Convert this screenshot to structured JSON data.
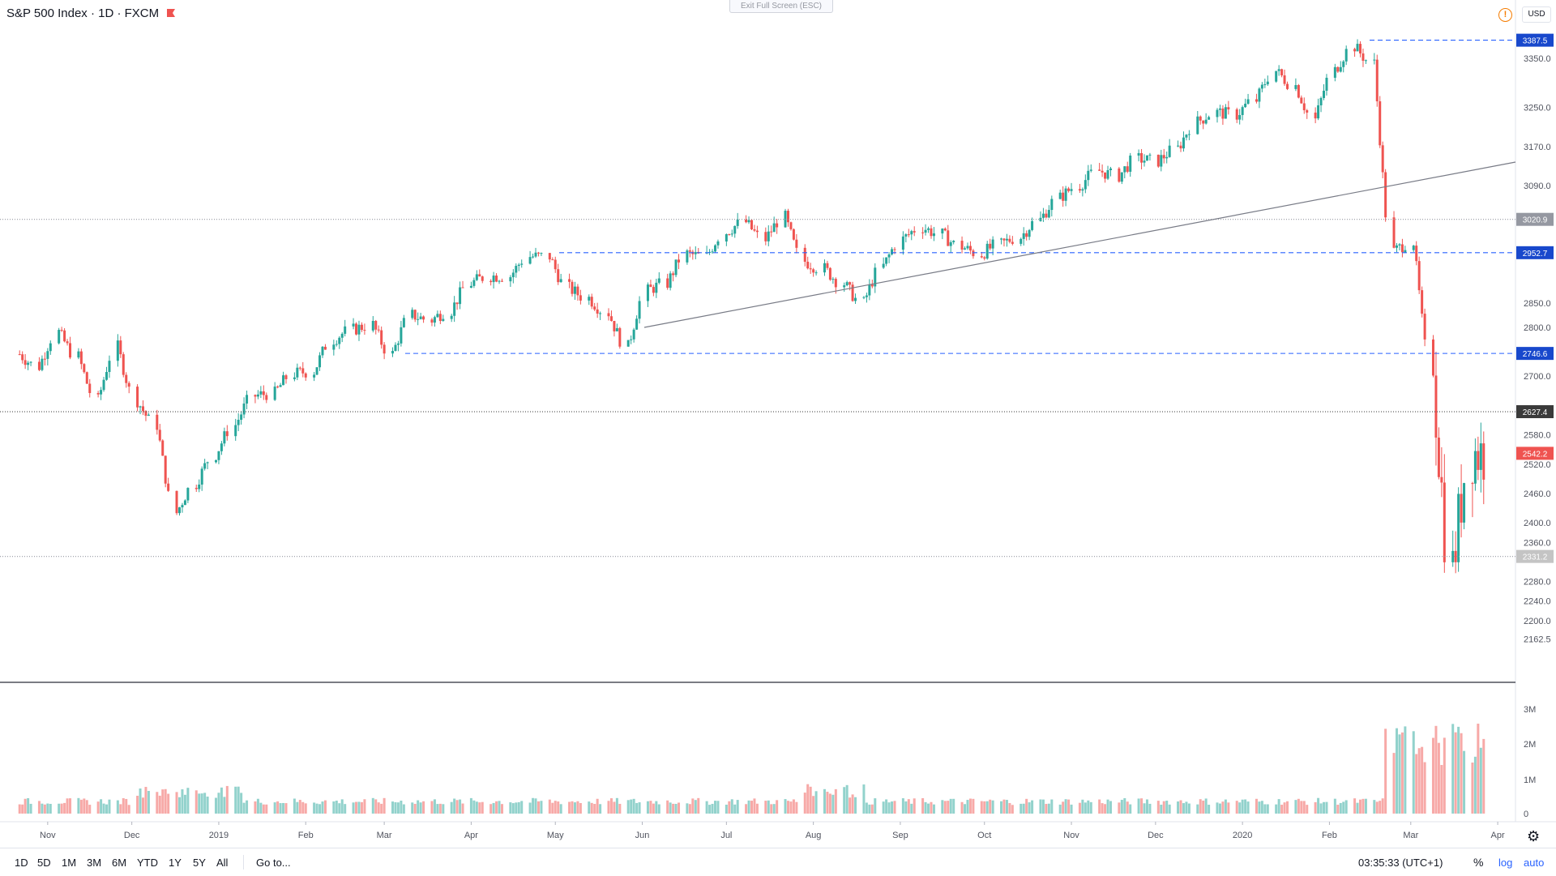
{
  "header": {
    "title": "S&P 500 Index · 1D · FXCM",
    "exit_fullscreen": "Exit Full Screen (ESC)",
    "currency": "USD",
    "warning_icon": "alert-circle-icon"
  },
  "bottom_bar": {
    "ranges": [
      "1D",
      "5D",
      "1M",
      "3M",
      "6M",
      "YTD",
      "1Y",
      "5Y",
      "All"
    ],
    "goto": "Go to...",
    "clock": "03:35:33 (UTC+1)",
    "percent": "%",
    "log": "log",
    "auto": "auto",
    "settings_icon": "gear-icon"
  },
  "colors": {
    "up": "#26a69a",
    "down": "#ef5350",
    "blue_line": "#2962ff",
    "trend": "#787b86"
  },
  "chart_data": {
    "type": "candlestick",
    "symbol": "S&P 500 Index",
    "interval": "1D",
    "source": "FXCM",
    "x_tick_labels": [
      "Nov",
      "Dec",
      "2019",
      "Feb",
      "Mar",
      "Apr",
      "May",
      "Jun",
      "Jul",
      "Aug",
      "Sep",
      "Oct",
      "Nov",
      "Dec",
      "2020",
      "Feb",
      "Mar",
      "Apr"
    ],
    "y_tick_labels": [
      3350.0,
      3250.0,
      3170.0,
      3090.0,
      2850.0,
      2800.0,
      2700.0,
      2580.0,
      2520.0,
      2460.0,
      2400.0,
      2360.0,
      2280.0,
      2240.0,
      2200.0,
      2162.5
    ],
    "y_range": [
      2130,
      3420
    ],
    "horizontal_levels": [
      {
        "value": 3387.5,
        "style": "dashed",
        "color": "#2962ff",
        "label_bg": "#1848cc"
      },
      {
        "value": 3020.9,
        "style": "dotted",
        "color": "#9598a1",
        "label_bg": "#9598a1"
      },
      {
        "value": 2952.7,
        "style": "dashed",
        "color": "#2962ff",
        "label_bg": "#1848cc"
      },
      {
        "value": 2746.6,
        "style": "dashed",
        "color": "#2962ff",
        "label_bg": "#1848cc"
      },
      {
        "value": 2627.4,
        "style": "dotted",
        "color": "#4a4a4a",
        "label_bg": "#3a3a3a"
      },
      {
        "value": 2331.2,
        "style": "dotted",
        "color": "#9598a1",
        "label_bg": "#c4c4c4"
      }
    ],
    "last_price": 2542.2,
    "volume_axis_labels": [
      "3M",
      "2M",
      "1M",
      "0"
    ],
    "weekly_closes": [
      [
        "2018-10-22",
        2745
      ],
      [
        "2018-10-29",
        2720
      ],
      [
        "2018-11-05",
        2790
      ],
      [
        "2018-11-12",
        2740
      ],
      [
        "2018-11-19",
        2650
      ],
      [
        "2018-11-26",
        2760
      ],
      [
        "2018-12-03",
        2650
      ],
      [
        "2018-12-10",
        2600
      ],
      [
        "2018-12-17",
        2420
      ],
      [
        "2018-12-24",
        2480
      ],
      [
        "2018-12-31",
        2540
      ],
      [
        "2019-01-07",
        2600
      ],
      [
        "2019-01-14",
        2660
      ],
      [
        "2019-01-21",
        2665
      ],
      [
        "2019-01-28",
        2705
      ],
      [
        "2019-02-04",
        2710
      ],
      [
        "2019-02-11",
        2775
      ],
      [
        "2019-02-18",
        2795
      ],
      [
        "2019-02-25",
        2805
      ],
      [
        "2019-03-04",
        2745
      ],
      [
        "2019-03-11",
        2825
      ],
      [
        "2019-03-18",
        2815
      ],
      [
        "2019-03-25",
        2835
      ],
      [
        "2019-04-01",
        2890
      ],
      [
        "2019-04-08",
        2905
      ],
      [
        "2019-04-15",
        2905
      ],
      [
        "2019-04-22",
        2945
      ],
      [
        "2019-04-29",
        2945
      ],
      [
        "2019-05-06",
        2880
      ],
      [
        "2019-05-13",
        2860
      ],
      [
        "2019-05-20",
        2830
      ],
      [
        "2019-05-27",
        2760
      ],
      [
        "2019-06-03",
        2875
      ],
      [
        "2019-06-10",
        2890
      ],
      [
        "2019-06-17",
        2950
      ],
      [
        "2019-06-24",
        2945
      ],
      [
        "2019-07-01",
        2995
      ],
      [
        "2019-07-08",
        3015
      ],
      [
        "2019-07-15",
        2980
      ],
      [
        "2019-07-22",
        3025
      ],
      [
        "2019-07-29",
        2935
      ],
      [
        "2019-08-05",
        2920
      ],
      [
        "2019-08-12",
        2890
      ],
      [
        "2019-08-19",
        2850
      ],
      [
        "2019-08-26",
        2925
      ],
      [
        "2019-09-02",
        2980
      ],
      [
        "2019-09-09",
        3005
      ],
      [
        "2019-09-16",
        2990
      ],
      [
        "2019-09-23",
        2965
      ],
      [
        "2019-09-30",
        2950
      ],
      [
        "2019-10-07",
        2970
      ],
      [
        "2019-10-14",
        2985
      ],
      [
        "2019-10-21",
        3020
      ],
      [
        "2019-10-28",
        3065
      ],
      [
        "2019-11-04",
        3090
      ],
      [
        "2019-11-11",
        3120
      ],
      [
        "2019-11-18",
        3110
      ],
      [
        "2019-11-25",
        3145
      ],
      [
        "2019-12-02",
        3140
      ],
      [
        "2019-12-09",
        3165
      ],
      [
        "2019-12-16",
        3220
      ],
      [
        "2019-12-23",
        3240
      ],
      [
        "2019-12-30",
        3235
      ],
      [
        "2020-01-06",
        3265
      ],
      [
        "2020-01-13",
        3325
      ],
      [
        "2020-01-20",
        3295
      ],
      [
        "2020-01-27",
        3225
      ],
      [
        "2020-02-03",
        3325
      ],
      [
        "2020-02-10",
        3375
      ],
      [
        "2020-02-17",
        3340
      ],
      [
        "2020-02-24",
        2955
      ],
      [
        "2020-03-02",
        2975
      ],
      [
        "2020-03-09",
        2710
      ],
      [
        "2020-03-16",
        2305
      ],
      [
        "2020-03-23",
        2545
      ],
      [
        "2020-03-30",
        2542
      ]
    ]
  }
}
